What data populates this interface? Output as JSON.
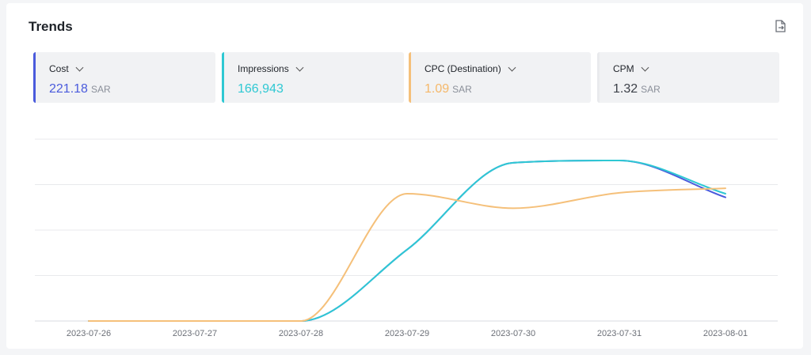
{
  "header": {
    "title": "Trends",
    "export_icon": "export-file-icon"
  },
  "metrics": [
    {
      "label": "Cost",
      "value": "221.18",
      "unit": "SAR",
      "color": "#4a5bdc",
      "value_color": "#4a5bdc"
    },
    {
      "label": "Impressions",
      "value": "166,943",
      "unit": "",
      "color": "#2ec8d3",
      "value_color": "#2ec8d3"
    },
    {
      "label": "CPC (Destination)",
      "value": "1.09",
      "unit": "SAR",
      "color": "#f5c07a",
      "value_color": "#f5b86a"
    },
    {
      "label": "CPM",
      "value": "1.32",
      "unit": "SAR",
      "color": "#e9eaed",
      "value_color": "#3c4048"
    }
  ],
  "chart_data": {
    "type": "line",
    "categories": [
      "2023-07-26",
      "2023-07-27",
      "2023-07-28",
      "2023-07-29",
      "2023-07-30",
      "2023-07-31",
      "2023-08-01"
    ],
    "ylim": [
      0,
      4
    ],
    "grid": true,
    "series": [
      {
        "name": "Cost",
        "color": "#4a5bdc",
        "values": [
          0,
          0,
          0,
          1.57,
          3.48,
          3.53,
          2.72
        ]
      },
      {
        "name": "Impressions",
        "color": "#2ec8d3",
        "values": [
          0,
          0,
          0,
          1.57,
          3.48,
          3.53,
          2.8
        ]
      },
      {
        "name": "CPC (Destination)",
        "color": "#f5c07a",
        "values": [
          0,
          0,
          0,
          2.8,
          2.48,
          2.82,
          2.92
        ]
      }
    ]
  }
}
